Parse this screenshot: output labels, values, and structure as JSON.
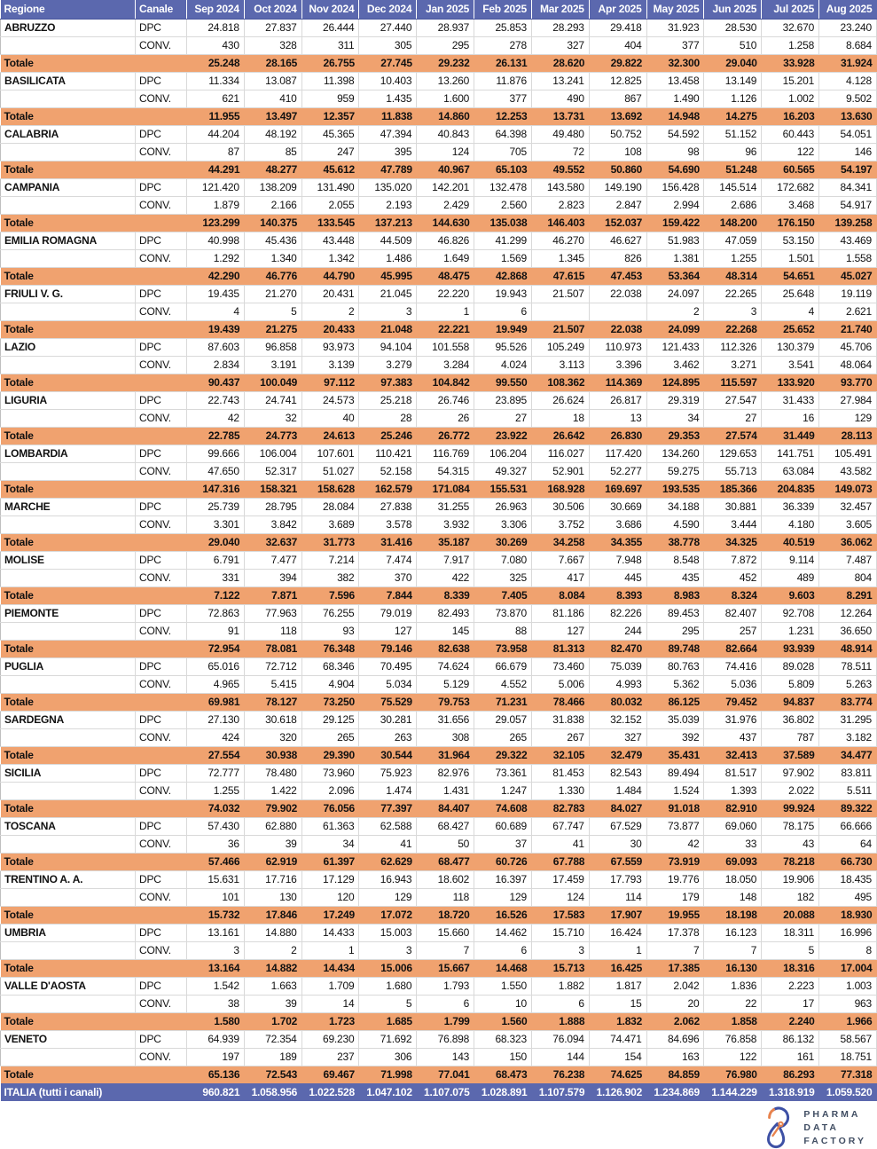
{
  "colors": {
    "header_bg": "#5b68ae",
    "totale_bg": "#f0a26f",
    "italia_bg": "#5b68ae",
    "grid": "#d9d9d9",
    "logo_blue": "#3e51a5",
    "logo_orange": "#e8834d"
  },
  "table": {
    "col_region_label": "Regione",
    "col_channel_label": "Canale",
    "months": [
      "Sep 2024",
      "Oct 2024",
      "Nov 2024",
      "Dec 2024",
      "Jan 2025",
      "Feb 2025",
      "Mar 2025",
      "Apr 2025",
      "May 2025",
      "Jun 2025",
      "Jul 2025",
      "Aug 2025"
    ],
    "channel_dpc_label": "DPC",
    "channel_conv_label": "CONV.",
    "totale_label": "Totale",
    "regions": [
      {
        "name": "ABRUZZO",
        "dpc": [
          "24.818",
          "27.837",
          "26.444",
          "27.440",
          "28.937",
          "25.853",
          "28.293",
          "29.418",
          "31.923",
          "28.530",
          "32.670",
          "23.240"
        ],
        "conv": [
          "430",
          "328",
          "311",
          "305",
          "295",
          "278",
          "327",
          "404",
          "377",
          "510",
          "1.258",
          "8.684"
        ],
        "totale": [
          "25.248",
          "28.165",
          "26.755",
          "27.745",
          "29.232",
          "26.131",
          "28.620",
          "29.822",
          "32.300",
          "29.040",
          "33.928",
          "31.924"
        ]
      },
      {
        "name": "BASILICATA",
        "dpc": [
          "11.334",
          "13.087",
          "11.398",
          "10.403",
          "13.260",
          "11.876",
          "13.241",
          "12.825",
          "13.458",
          "13.149",
          "15.201",
          "4.128"
        ],
        "conv": [
          "621",
          "410",
          "959",
          "1.435",
          "1.600",
          "377",
          "490",
          "867",
          "1.490",
          "1.126",
          "1.002",
          "9.502"
        ],
        "totale": [
          "11.955",
          "13.497",
          "12.357",
          "11.838",
          "14.860",
          "12.253",
          "13.731",
          "13.692",
          "14.948",
          "14.275",
          "16.203",
          "13.630"
        ]
      },
      {
        "name": "CALABRIA",
        "dpc": [
          "44.204",
          "48.192",
          "45.365",
          "47.394",
          "40.843",
          "64.398",
          "49.480",
          "50.752",
          "54.592",
          "51.152",
          "60.443",
          "54.051"
        ],
        "conv": [
          "87",
          "85",
          "247",
          "395",
          "124",
          "705",
          "72",
          "108",
          "98",
          "96",
          "122",
          "146"
        ],
        "totale": [
          "44.291",
          "48.277",
          "45.612",
          "47.789",
          "40.967",
          "65.103",
          "49.552",
          "50.860",
          "54.690",
          "51.248",
          "60.565",
          "54.197"
        ]
      },
      {
        "name": "CAMPANIA",
        "dpc": [
          "121.420",
          "138.209",
          "131.490",
          "135.020",
          "142.201",
          "132.478",
          "143.580",
          "149.190",
          "156.428",
          "145.514",
          "172.682",
          "84.341"
        ],
        "conv": [
          "1.879",
          "2.166",
          "2.055",
          "2.193",
          "2.429",
          "2.560",
          "2.823",
          "2.847",
          "2.994",
          "2.686",
          "3.468",
          "54.917"
        ],
        "totale": [
          "123.299",
          "140.375",
          "133.545",
          "137.213",
          "144.630",
          "135.038",
          "146.403",
          "152.037",
          "159.422",
          "148.200",
          "176.150",
          "139.258"
        ]
      },
      {
        "name": "EMILIA ROMAGNA",
        "dpc": [
          "40.998",
          "45.436",
          "43.448",
          "44.509",
          "46.826",
          "41.299",
          "46.270",
          "46.627",
          "51.983",
          "47.059",
          "53.150",
          "43.469"
        ],
        "conv": [
          "1.292",
          "1.340",
          "1.342",
          "1.486",
          "1.649",
          "1.569",
          "1.345",
          "826",
          "1.381",
          "1.255",
          "1.501",
          "1.558"
        ],
        "totale": [
          "42.290",
          "46.776",
          "44.790",
          "45.995",
          "48.475",
          "42.868",
          "47.615",
          "47.453",
          "53.364",
          "48.314",
          "54.651",
          "45.027"
        ]
      },
      {
        "name": "FRIULI V. G.",
        "dpc": [
          "19.435",
          "21.270",
          "20.431",
          "21.045",
          "22.220",
          "19.943",
          "21.507",
          "22.038",
          "24.097",
          "22.265",
          "25.648",
          "19.119"
        ],
        "conv": [
          "4",
          "5",
          "2",
          "3",
          "1",
          "6",
          "",
          "",
          "2",
          "3",
          "4",
          "2.621"
        ],
        "totale": [
          "19.439",
          "21.275",
          "20.433",
          "21.048",
          "22.221",
          "19.949",
          "21.507",
          "22.038",
          "24.099",
          "22.268",
          "25.652",
          "21.740"
        ]
      },
      {
        "name": "LAZIO",
        "dpc": [
          "87.603",
          "96.858",
          "93.973",
          "94.104",
          "101.558",
          "95.526",
          "105.249",
          "110.973",
          "121.433",
          "112.326",
          "130.379",
          "45.706"
        ],
        "conv": [
          "2.834",
          "3.191",
          "3.139",
          "3.279",
          "3.284",
          "4.024",
          "3.113",
          "3.396",
          "3.462",
          "3.271",
          "3.541",
          "48.064"
        ],
        "totale": [
          "90.437",
          "100.049",
          "97.112",
          "97.383",
          "104.842",
          "99.550",
          "108.362",
          "114.369",
          "124.895",
          "115.597",
          "133.920",
          "93.770"
        ]
      },
      {
        "name": "LIGURIA",
        "dpc": [
          "22.743",
          "24.741",
          "24.573",
          "25.218",
          "26.746",
          "23.895",
          "26.624",
          "26.817",
          "29.319",
          "27.547",
          "31.433",
          "27.984"
        ],
        "conv": [
          "42",
          "32",
          "40",
          "28",
          "26",
          "27",
          "18",
          "13",
          "34",
          "27",
          "16",
          "129"
        ],
        "totale": [
          "22.785",
          "24.773",
          "24.613",
          "25.246",
          "26.772",
          "23.922",
          "26.642",
          "26.830",
          "29.353",
          "27.574",
          "31.449",
          "28.113"
        ]
      },
      {
        "name": "LOMBARDIA",
        "dpc": [
          "99.666",
          "106.004",
          "107.601",
          "110.421",
          "116.769",
          "106.204",
          "116.027",
          "117.420",
          "134.260",
          "129.653",
          "141.751",
          "105.491"
        ],
        "conv": [
          "47.650",
          "52.317",
          "51.027",
          "52.158",
          "54.315",
          "49.327",
          "52.901",
          "52.277",
          "59.275",
          "55.713",
          "63.084",
          "43.582"
        ],
        "totale": [
          "147.316",
          "158.321",
          "158.628",
          "162.579",
          "171.084",
          "155.531",
          "168.928",
          "169.697",
          "193.535",
          "185.366",
          "204.835",
          "149.073"
        ]
      },
      {
        "name": "MARCHE",
        "dpc": [
          "25.739",
          "28.795",
          "28.084",
          "27.838",
          "31.255",
          "26.963",
          "30.506",
          "30.669",
          "34.188",
          "30.881",
          "36.339",
          "32.457"
        ],
        "conv": [
          "3.301",
          "3.842",
          "3.689",
          "3.578",
          "3.932",
          "3.306",
          "3.752",
          "3.686",
          "4.590",
          "3.444",
          "4.180",
          "3.605"
        ],
        "totale": [
          "29.040",
          "32.637",
          "31.773",
          "31.416",
          "35.187",
          "30.269",
          "34.258",
          "34.355",
          "38.778",
          "34.325",
          "40.519",
          "36.062"
        ]
      },
      {
        "name": "MOLISE",
        "dpc": [
          "6.791",
          "7.477",
          "7.214",
          "7.474",
          "7.917",
          "7.080",
          "7.667",
          "7.948",
          "8.548",
          "7.872",
          "9.114",
          "7.487"
        ],
        "conv": [
          "331",
          "394",
          "382",
          "370",
          "422",
          "325",
          "417",
          "445",
          "435",
          "452",
          "489",
          "804"
        ],
        "totale": [
          "7.122",
          "7.871",
          "7.596",
          "7.844",
          "8.339",
          "7.405",
          "8.084",
          "8.393",
          "8.983",
          "8.324",
          "9.603",
          "8.291"
        ]
      },
      {
        "name": "PIEMONTE",
        "dpc": [
          "72.863",
          "77.963",
          "76.255",
          "79.019",
          "82.493",
          "73.870",
          "81.186",
          "82.226",
          "89.453",
          "82.407",
          "92.708",
          "12.264"
        ],
        "conv": [
          "91",
          "118",
          "93",
          "127",
          "145",
          "88",
          "127",
          "244",
          "295",
          "257",
          "1.231",
          "36.650"
        ],
        "totale": [
          "72.954",
          "78.081",
          "76.348",
          "79.146",
          "82.638",
          "73.958",
          "81.313",
          "82.470",
          "89.748",
          "82.664",
          "93.939",
          "48.914"
        ]
      },
      {
        "name": "PUGLIA",
        "dpc": [
          "65.016",
          "72.712",
          "68.346",
          "70.495",
          "74.624",
          "66.679",
          "73.460",
          "75.039",
          "80.763",
          "74.416",
          "89.028",
          "78.511"
        ],
        "conv": [
          "4.965",
          "5.415",
          "4.904",
          "5.034",
          "5.129",
          "4.552",
          "5.006",
          "4.993",
          "5.362",
          "5.036",
          "5.809",
          "5.263"
        ],
        "totale": [
          "69.981",
          "78.127",
          "73.250",
          "75.529",
          "79.753",
          "71.231",
          "78.466",
          "80.032",
          "86.125",
          "79.452",
          "94.837",
          "83.774"
        ]
      },
      {
        "name": "SARDEGNA",
        "dpc": [
          "27.130",
          "30.618",
          "29.125",
          "30.281",
          "31.656",
          "29.057",
          "31.838",
          "32.152",
          "35.039",
          "31.976",
          "36.802",
          "31.295"
        ],
        "conv": [
          "424",
          "320",
          "265",
          "263",
          "308",
          "265",
          "267",
          "327",
          "392",
          "437",
          "787",
          "3.182"
        ],
        "totale": [
          "27.554",
          "30.938",
          "29.390",
          "30.544",
          "31.964",
          "29.322",
          "32.105",
          "32.479",
          "35.431",
          "32.413",
          "37.589",
          "34.477"
        ]
      },
      {
        "name": "SICILIA",
        "dpc": [
          "72.777",
          "78.480",
          "73.960",
          "75.923",
          "82.976",
          "73.361",
          "81.453",
          "82.543",
          "89.494",
          "81.517",
          "97.902",
          "83.811"
        ],
        "conv": [
          "1.255",
          "1.422",
          "2.096",
          "1.474",
          "1.431",
          "1.247",
          "1.330",
          "1.484",
          "1.524",
          "1.393",
          "2.022",
          "5.511"
        ],
        "totale": [
          "74.032",
          "79.902",
          "76.056",
          "77.397",
          "84.407",
          "74.608",
          "82.783",
          "84.027",
          "91.018",
          "82.910",
          "99.924",
          "89.322"
        ]
      },
      {
        "name": "TOSCANA",
        "dpc": [
          "57.430",
          "62.880",
          "61.363",
          "62.588",
          "68.427",
          "60.689",
          "67.747",
          "67.529",
          "73.877",
          "69.060",
          "78.175",
          "66.666"
        ],
        "conv": [
          "36",
          "39",
          "34",
          "41",
          "50",
          "37",
          "41",
          "30",
          "42",
          "33",
          "43",
          "64"
        ],
        "totale": [
          "57.466",
          "62.919",
          "61.397",
          "62.629",
          "68.477",
          "60.726",
          "67.788",
          "67.559",
          "73.919",
          "69.093",
          "78.218",
          "66.730"
        ]
      },
      {
        "name": "TRENTINO A. A.",
        "dpc": [
          "15.631",
          "17.716",
          "17.129",
          "16.943",
          "18.602",
          "16.397",
          "17.459",
          "17.793",
          "19.776",
          "18.050",
          "19.906",
          "18.435"
        ],
        "conv": [
          "101",
          "130",
          "120",
          "129",
          "118",
          "129",
          "124",
          "114",
          "179",
          "148",
          "182",
          "495"
        ],
        "totale": [
          "15.732",
          "17.846",
          "17.249",
          "17.072",
          "18.720",
          "16.526",
          "17.583",
          "17.907",
          "19.955",
          "18.198",
          "20.088",
          "18.930"
        ]
      },
      {
        "name": "UMBRIA",
        "dpc": [
          "13.161",
          "14.880",
          "14.433",
          "15.003",
          "15.660",
          "14.462",
          "15.710",
          "16.424",
          "17.378",
          "16.123",
          "18.311",
          "16.996"
        ],
        "conv": [
          "3",
          "2",
          "1",
          "3",
          "7",
          "6",
          "3",
          "1",
          "7",
          "7",
          "5",
          "8"
        ],
        "totale": [
          "13.164",
          "14.882",
          "14.434",
          "15.006",
          "15.667",
          "14.468",
          "15.713",
          "16.425",
          "17.385",
          "16.130",
          "18.316",
          "17.004"
        ]
      },
      {
        "name": "VALLE D'AOSTA",
        "dpc": [
          "1.542",
          "1.663",
          "1.709",
          "1.680",
          "1.793",
          "1.550",
          "1.882",
          "1.817",
          "2.042",
          "1.836",
          "2.223",
          "1.003"
        ],
        "conv": [
          "38",
          "39",
          "14",
          "5",
          "6",
          "10",
          "6",
          "15",
          "20",
          "22",
          "17",
          "963"
        ],
        "totale": [
          "1.580",
          "1.702",
          "1.723",
          "1.685",
          "1.799",
          "1.560",
          "1.888",
          "1.832",
          "2.062",
          "1.858",
          "2.240",
          "1.966"
        ]
      },
      {
        "name": "VENETO",
        "dpc": [
          "64.939",
          "72.354",
          "69.230",
          "71.692",
          "76.898",
          "68.323",
          "76.094",
          "74.471",
          "84.696",
          "76.858",
          "86.132",
          "58.567"
        ],
        "conv": [
          "197",
          "189",
          "237",
          "306",
          "143",
          "150",
          "144",
          "154",
          "163",
          "122",
          "161",
          "18.751"
        ],
        "totale": [
          "65.136",
          "72.543",
          "69.467",
          "71.998",
          "77.041",
          "68.473",
          "76.238",
          "74.625",
          "84.859",
          "76.980",
          "86.293",
          "77.318"
        ]
      }
    ],
    "italia": {
      "label": "ITALIA (tutti i canali)",
      "values": [
        "960.821",
        "1.058.956",
        "1.022.528",
        "1.047.102",
        "1.107.075",
        "1.028.891",
        "1.107.579",
        "1.126.902",
        "1.234.869",
        "1.144.229",
        "1.318.919",
        "1.059.520"
      ]
    }
  },
  "logo": {
    "lines": [
      "PHARMA",
      "DATA",
      "FACTORY"
    ]
  }
}
